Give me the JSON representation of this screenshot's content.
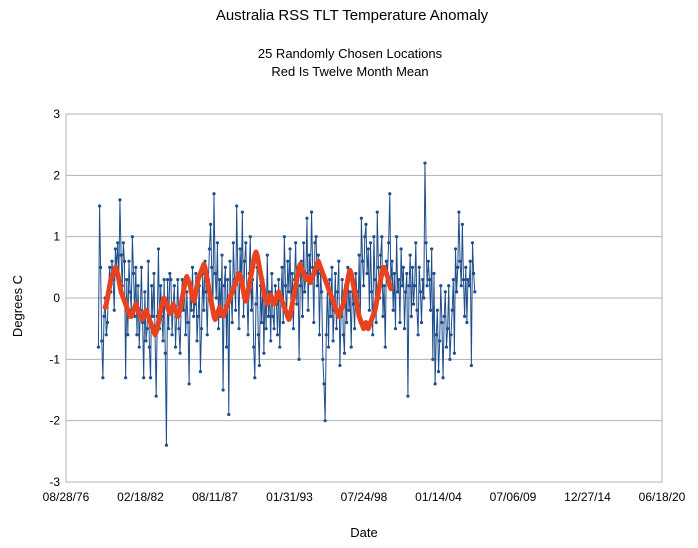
{
  "chart_data": {
    "type": "line",
    "title": "Australia RSS TLT Temperature Anomaly",
    "subtitle_lines": [
      "25 Randomly Chosen Locations",
      "Red Is Twelve Month Mean"
    ],
    "xlabel": "Date",
    "ylabel": "Degrees C",
    "ylim": [
      -3,
      3
    ],
    "yticks": [
      -3,
      -2,
      -1,
      0,
      1,
      2,
      3
    ],
    "xlim": [
      "1976-08-28",
      "2020-06-18"
    ],
    "xtick_labels": [
      "08/28/76",
      "02/18/82",
      "08/11/87",
      "01/31/93",
      "07/24/98",
      "01/14/04",
      "07/06/09",
      "12/27/14",
      "06/18/20"
    ],
    "grid": true,
    "series": [
      {
        "color": "#1f4e8c",
        "style": "line-with-markers",
        "start": "1979-01",
        "values": [
          -0.8,
          1.5,
          0.5,
          -0.7,
          -1.3,
          -0.3,
          0.0,
          -0.6,
          -0.4,
          0.2,
          0.5,
          0.1,
          0.6,
          0.3,
          -0.2,
          0.8,
          0.5,
          0.9,
          0.3,
          1.6,
          0.7,
          0.2,
          0.9,
          0.6,
          -1.3,
          0.3,
          -0.6,
          0.6,
          0.1,
          -0.2,
          1.0,
          0.4,
          -0.3,
          0.5,
          -0.6,
          0.2,
          -0.8,
          -0.2,
          0.5,
          -0.4,
          -1.3,
          0.1,
          -0.7,
          -0.5,
          0.6,
          -0.8,
          -1.3,
          0.2,
          -0.3,
          0.4,
          -0.6,
          -1.6,
          -0.3,
          0.8,
          -0.5,
          0.2,
          -0.3,
          -0.7,
          0.3,
          -0.9,
          -2.4,
          0.3,
          -0.5,
          0.4,
          0.3,
          -0.6,
          -0.1,
          0.2,
          -0.8,
          -0.3,
          0.3,
          -0.5,
          -0.9,
          -0.1,
          0.3,
          -0.2,
          0.2,
          -0.6,
          0.1,
          -0.4,
          -1.4,
          0.2,
          -0.2,
          0.5,
          -0.3,
          -0.1,
          0.4,
          -0.7,
          -0.3,
          0.2,
          -1.2,
          -0.5,
          0.4,
          -0.2,
          0.6,
          0.1,
          -0.6,
          0.3,
          0.8,
          1.2,
          0.5,
          -0.2,
          1.7,
          0.4,
          0.0,
          0.9,
          -0.5,
          0.3,
          -0.3,
          0.7,
          -1.5,
          0.2,
          0.5,
          -0.8,
          0.3,
          -1.9,
          0.6,
          0.1,
          -0.4,
          0.9,
          0.3,
          -0.2,
          1.5,
          0.4,
          -0.5,
          0.8,
          0.2,
          1.4,
          -0.3,
          0.6,
          0.9,
          0.1,
          -0.6,
          0.4,
          1.0,
          -0.2,
          0.3,
          -0.8,
          -1.3,
          -0.1,
          0.5,
          -0.6,
          -1.1,
          0.2,
          -0.4,
          0.3,
          -0.9,
          0.1,
          -0.5,
          0.7,
          -0.3,
          0.1,
          -0.7,
          0.4,
          -0.3,
          -0.5,
          0.2,
          -0.1,
          -0.6,
          0.3,
          -0.8,
          0.0,
          0.5,
          -0.4,
          1.0,
          0.2,
          -0.3,
          0.6,
          0.1,
          0.8,
          -0.2,
          0.4,
          -0.5,
          0.3,
          0.9,
          -0.1,
          0.5,
          -1.0,
          0.2,
          0.6,
          -0.3,
          0.9,
          0.1,
          0.4,
          1.3,
          -0.2,
          0.7,
          0.3,
          1.4,
          0.5,
          -0.4,
          0.9,
          1.0,
          0.2,
          0.7,
          -0.6,
          0.4,
          0.1,
          -1.0,
          -1.4,
          -2.0,
          -0.6,
          0.2,
          -0.8,
          0.3,
          -0.3,
          0.5,
          -0.7,
          -0.2,
          0.4,
          -0.5,
          0.1,
          0.6,
          -1.1,
          -0.3,
          0.3,
          -0.6,
          -0.9,
          0.2,
          -0.4,
          0.5,
          -0.2,
          0.1,
          -0.8,
          0.3,
          -0.1,
          -0.5,
          0.4,
          0.1,
          -0.3,
          0.7,
          -0.4,
          1.3,
          0.6,
          0.2,
          1.0,
          1.2,
          0.4,
          0.8,
          -0.2,
          0.9,
          0.1,
          -0.6,
          1.0,
          0.3,
          -0.4,
          1.4,
          0.5,
          0.0,
          0.7,
          1.0,
          -0.3,
          0.2,
          -0.8,
          0.6,
          0.4,
          0.9,
          1.7,
          0.2,
          0.6,
          -0.2,
          0.4,
          -0.5,
          1.0,
          0.1,
          0.3,
          -0.4,
          0.8,
          0.2,
          0.5,
          -0.5,
          0.1,
          0.4,
          -1.6,
          0.2,
          0.7,
          -0.3,
          0.5,
          -0.1,
          0.2,
          0.9,
          -0.2,
          -0.6,
          0.5,
          0.1,
          -0.4,
          0.3,
          0.0,
          2.2,
          0.9,
          0.2,
          0.6,
          0.3,
          -0.2,
          0.8,
          -1.0,
          0.4,
          -1.4,
          -0.6,
          -0.2,
          -1.2,
          -0.7,
          0.2,
          -0.4,
          -1.3,
          -0.3,
          0.1,
          -0.8,
          -0.5,
          0.2,
          -1.0,
          -0.6,
          -0.2,
          0.3,
          -0.9,
          0.8,
          0.1,
          0.5,
          1.4,
          0.6,
          0.2,
          1.2,
          0.3,
          -0.3,
          0.5,
          -0.4,
          0.3,
          0.2,
          0.6,
          -1.1,
          0.9,
          0.4,
          0.1
        ]
      },
      {
        "color": "#e8421f",
        "style": "thick-line",
        "start": "1979-07",
        "values": [
          -0.15,
          -0.1,
          0.0,
          0.1,
          0.2,
          0.3,
          0.35,
          0.4,
          0.45,
          0.5,
          0.45,
          0.4,
          0.3,
          0.2,
          0.1,
          0.05,
          0.0,
          -0.05,
          -0.1,
          -0.15,
          -0.2,
          -0.25,
          -0.3,
          -0.3,
          -0.25,
          -0.2,
          -0.15,
          -0.1,
          -0.15,
          -0.2,
          -0.25,
          -0.3,
          -0.3,
          -0.35,
          -0.3,
          -0.25,
          -0.2,
          -0.25,
          -0.3,
          -0.35,
          -0.4,
          -0.45,
          -0.5,
          -0.55,
          -0.6,
          -0.55,
          -0.5,
          -0.4,
          -0.3,
          -0.2,
          -0.1,
          -0.05,
          0.0,
          -0.05,
          -0.1,
          -0.15,
          -0.2,
          -0.25,
          -0.2,
          -0.15,
          -0.1,
          -0.15,
          -0.2,
          -0.25,
          -0.3,
          -0.25,
          -0.2,
          -0.1,
          0.0,
          0.1,
          0.2,
          0.3,
          0.35,
          0.3,
          0.25,
          0.2,
          0.1,
          0.0,
          -0.05,
          0.0,
          0.1,
          0.2,
          0.3,
          0.35,
          0.4,
          0.45,
          0.5,
          0.55,
          0.5,
          0.4,
          0.3,
          0.2,
          0.1,
          0.0,
          -0.1,
          -0.2,
          -0.3,
          -0.35,
          -0.3,
          -0.25,
          -0.2,
          -0.15,
          -0.2,
          -0.25,
          -0.3,
          -0.25,
          -0.2,
          -0.15,
          -0.1,
          -0.05,
          0.0,
          0.05,
          0.1,
          0.15,
          0.2,
          0.25,
          0.3,
          0.35,
          0.4,
          0.35,
          0.3,
          0.2,
          0.1,
          0.0,
          -0.05,
          0.0,
          0.1,
          0.2,
          0.3,
          0.4,
          0.5,
          0.6,
          0.7,
          0.75,
          0.7,
          0.6,
          0.5,
          0.4,
          0.3,
          0.2,
          0.1,
          0.0,
          -0.05,
          -0.1,
          -0.05,
          0.0,
          0.05,
          0.0,
          -0.05,
          -0.1,
          -0.05,
          0.0,
          0.05,
          0.1,
          0.05,
          0.0,
          -0.05,
          -0.1,
          -0.15,
          -0.2,
          -0.25,
          -0.3,
          -0.35,
          -0.3,
          -0.2,
          -0.1,
          0.0,
          0.1,
          0.2,
          0.3,
          0.4,
          0.5,
          0.55,
          0.5,
          0.45,
          0.4,
          0.35,
          0.3,
          0.3,
          0.35,
          0.3,
          0.25,
          0.3,
          0.35,
          0.4,
          0.45,
          0.5,
          0.55,
          0.6,
          0.55,
          0.5,
          0.45,
          0.4,
          0.35,
          0.3,
          0.25,
          0.2,
          0.15,
          0.1,
          0.05,
          0.0,
          -0.05,
          -0.1,
          -0.15,
          -0.2,
          -0.25,
          -0.3,
          -0.25,
          -0.2,
          -0.15,
          -0.1,
          0.0,
          0.1,
          0.2,
          0.3,
          0.4,
          0.45,
          0.4,
          0.3,
          0.2,
          0.1,
          0.0,
          -0.1,
          -0.2,
          -0.3,
          -0.35,
          -0.4,
          -0.45,
          -0.5,
          -0.45,
          -0.4,
          -0.45,
          -0.5,
          -0.45,
          -0.4,
          -0.35,
          -0.3,
          -0.25,
          -0.2,
          -0.1,
          0.0,
          0.1,
          0.2,
          0.3,
          0.4,
          0.5,
          0.5,
          0.45,
          0.4,
          0.35,
          0.3,
          0.2,
          0.15
        ]
      }
    ]
  }
}
